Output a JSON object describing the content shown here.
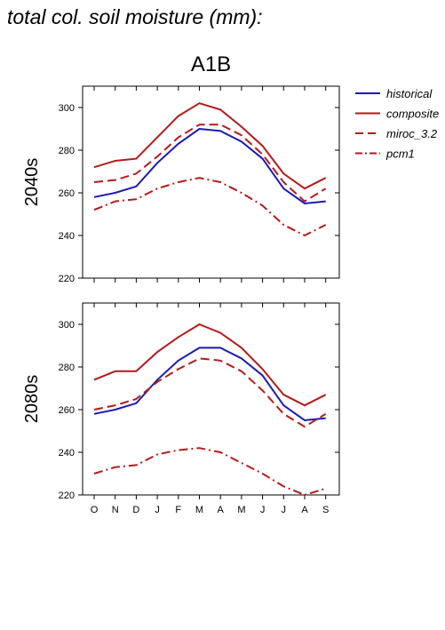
{
  "page": {
    "title": "total col. soil moisture (mm):"
  },
  "chart_data": {
    "type": "line",
    "scenario_label": "A1B",
    "categories": [
      "O",
      "N",
      "D",
      "J",
      "F",
      "M",
      "A",
      "M",
      "J",
      "J",
      "A",
      "S"
    ],
    "ylim": [
      220,
      310
    ],
    "yticks": [
      220,
      240,
      260,
      280,
      300
    ],
    "grid": false,
    "legend_position": "right",
    "legend": [
      {
        "name": "historical",
        "color": "#1a1ab3",
        "dash": "solid"
      },
      {
        "name": "composite",
        "color": "#b31a1a",
        "dash": "solid"
      },
      {
        "name": "miroc_3.2",
        "color": "#b31a1a",
        "dash": "dashed"
      },
      {
        "name": "pcm1",
        "color": "#b31a1a",
        "dash": "dashdot"
      }
    ],
    "panels": [
      {
        "label": "2040s",
        "series": [
          {
            "name": "historical",
            "values": [
              258,
              260,
              263,
              274,
              283,
              290,
              289,
              284,
              276,
              262,
              255,
              256
            ]
          },
          {
            "name": "composite",
            "values": [
              272,
              275,
              276,
              286,
              296,
              302,
              299,
              291,
              282,
              269,
              262,
              267
            ]
          },
          {
            "name": "miroc_3.2",
            "values": [
              265,
              266,
              269,
              277,
              286,
              292,
              292,
              287,
              278,
              265,
              256,
              262
            ]
          },
          {
            "name": "pcm1",
            "values": [
              252,
              256,
              257,
              262,
              265,
              267,
              265,
              260,
              254,
              245,
              240,
              245
            ]
          }
        ]
      },
      {
        "label": "2080s",
        "series": [
          {
            "name": "historical",
            "values": [
              258,
              260,
              263,
              274,
              283,
              289,
              289,
              284,
              276,
              262,
              255,
              256
            ]
          },
          {
            "name": "composite",
            "values": [
              274,
              278,
              278,
              287,
              294,
              300,
              296,
              289,
              279,
              267,
              262,
              267
            ]
          },
          {
            "name": "miroc_3.2",
            "values": [
              260,
              262,
              265,
              273,
              279,
              284,
              283,
              278,
              269,
              258,
              252,
              258
            ]
          },
          {
            "name": "pcm1",
            "values": [
              230,
              233,
              234,
              239,
              241,
              242,
              240,
              235,
              230,
              224,
              220,
              223
            ]
          }
        ]
      }
    ]
  }
}
